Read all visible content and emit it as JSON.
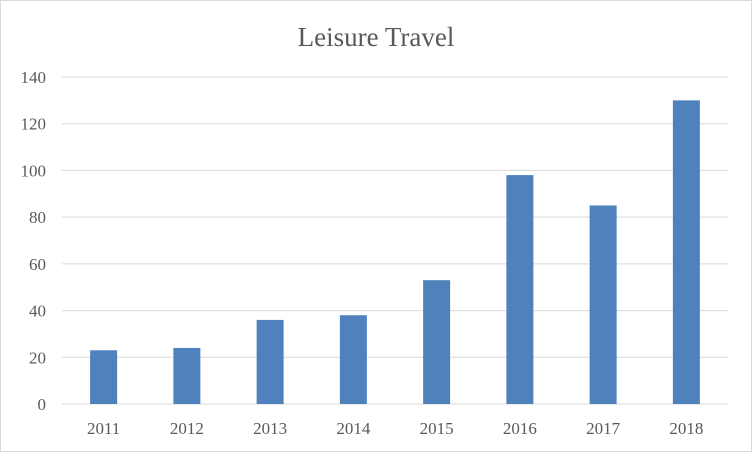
{
  "chart_data": {
    "type": "bar",
    "title": "Leisure Travel",
    "xlabel": "",
    "ylabel": "",
    "categories": [
      "2011",
      "2012",
      "2013",
      "2014",
      "2015",
      "2016",
      "2017",
      "2018"
    ],
    "values": [
      23,
      24,
      36,
      38,
      53,
      98,
      85,
      130
    ],
    "ylim": [
      0,
      140
    ],
    "yticks": [
      0,
      20,
      40,
      60,
      80,
      100,
      120,
      140
    ],
    "grid": true,
    "legend": "none",
    "colors": {
      "bar": "#4f81bd",
      "grid": "#d9d9d9",
      "text": "#595959",
      "border": "#d9d9d9"
    }
  }
}
